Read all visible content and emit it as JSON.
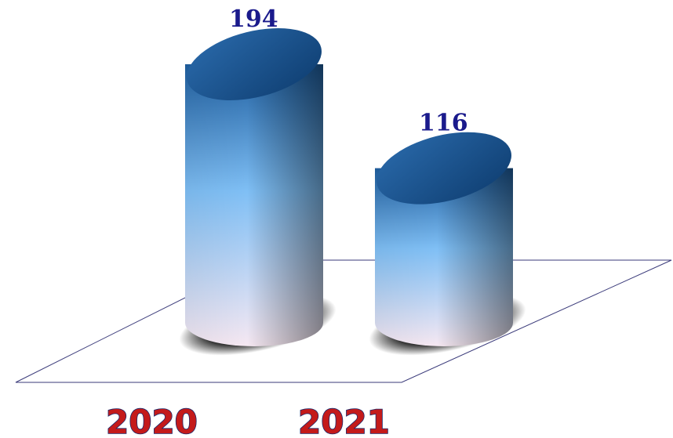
{
  "chart_data": {
    "type": "bar",
    "categories": [
      "2020",
      "2021"
    ],
    "values": [
      194,
      116
    ],
    "title": "",
    "xlabel": "",
    "ylabel": "",
    "ylim": [
      0,
      194
    ],
    "data_labels": [
      "194",
      "116"
    ]
  },
  "colors": {
    "bar_top": "#1f5fa0",
    "bar_mid": "#7fbff5",
    "bar_bottom": "#f6e8f2",
    "value_label": "#1a1a8c",
    "category_label": "#c41a1a",
    "category_outline": "#1a2a6c",
    "floor_line": "#3a3a7a"
  }
}
